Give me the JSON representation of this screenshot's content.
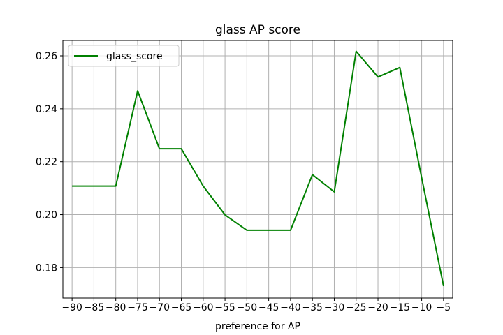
{
  "chart_data": {
    "type": "line",
    "title": "glass AP score",
    "xlabel": "preference for AP",
    "ylabel": "",
    "x": [
      -90,
      -85,
      -80,
      -75,
      -70,
      -65,
      -60,
      -55,
      -50,
      -45,
      -40,
      -35,
      -30,
      -25,
      -20,
      -15,
      -10,
      -5
    ],
    "xticks": [
      "−90",
      "−85",
      "−80",
      "−75",
      "−70",
      "−65",
      "−60",
      "−55",
      "−50",
      "−45",
      "−40",
      "−35",
      "−30",
      "−25",
      "−20",
      "−15",
      "−10",
      "−5"
    ],
    "yticks": [
      "0.18",
      "0.20",
      "0.22",
      "0.24",
      "0.26"
    ],
    "ytick_values": [
      0.18,
      0.2,
      0.22,
      0.24,
      0.26
    ],
    "xlim": [
      -92.1,
      -2.9
    ],
    "ylim": [
      0.1685,
      0.2658
    ],
    "grid": true,
    "legend_position": "top-left",
    "series": [
      {
        "name": "glass_score",
        "color": "#008000",
        "values": [
          0.2108,
          0.2108,
          0.2108,
          0.2468,
          0.2249,
          0.2249,
          0.2108,
          0.1999,
          0.1941,
          0.1941,
          0.1941,
          0.2151,
          0.2086,
          0.2617,
          0.252,
          0.2556,
          0.2139,
          0.173
        ]
      }
    ]
  }
}
